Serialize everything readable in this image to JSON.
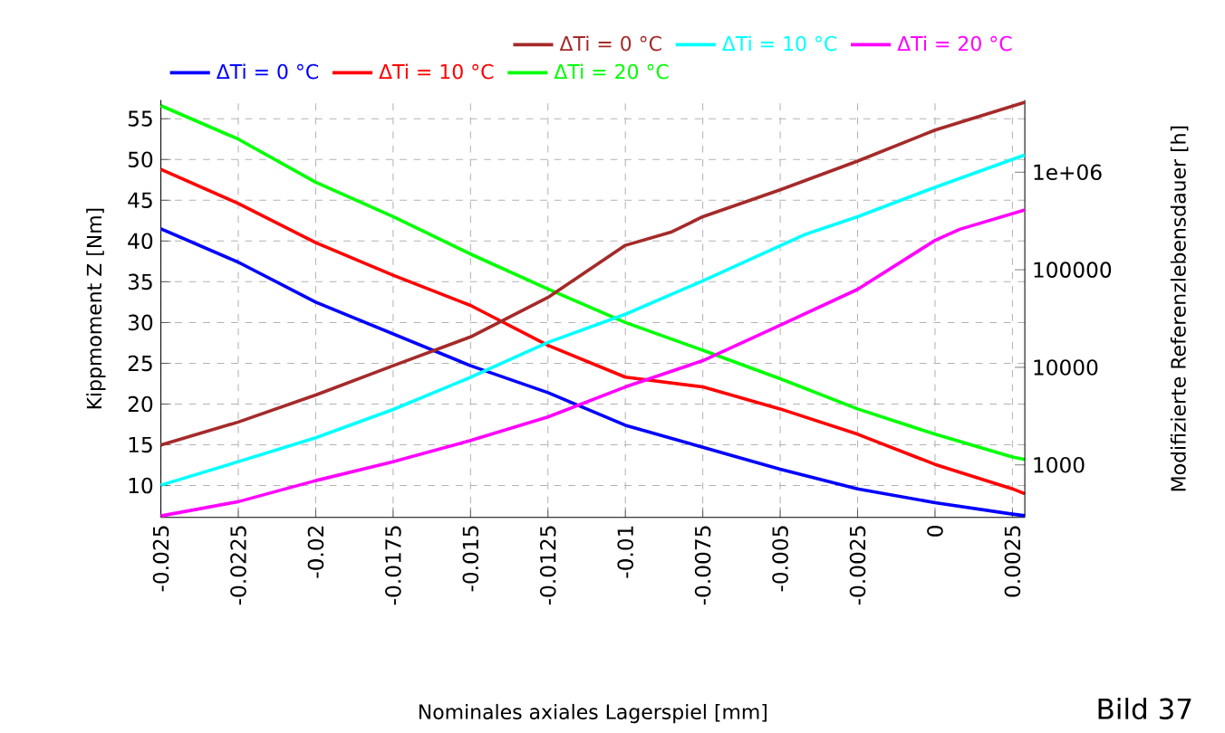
{
  "chart_data": {
    "type": "line",
    "xlabel": "Nominales axiales Lagerspiel [mm]",
    "ylabel": "Kippmoment Z [Nm]",
    "y2label": "Modifizierte Referenzlebensdauer [h]",
    "annotations": [
      "Bild 37"
    ],
    "x": [
      -0.025,
      -0.0225,
      -0.02,
      -0.0175,
      -0.015,
      -0.0125,
      -0.01,
      -0.0075,
      -0.005,
      -0.0025,
      0,
      0.0025,
      0.0029
    ],
    "xlim": [
      -0.025,
      0.0029
    ],
    "xticks": [
      -0.025,
      -0.0225,
      -0.02,
      -0.0175,
      -0.015,
      -0.0125,
      -0.01,
      -0.0075,
      -0.005,
      -0.0025,
      0,
      0.0025
    ],
    "ylim": [
      6.1,
      57.3
    ],
    "yticks": [
      10,
      15,
      20,
      25,
      30,
      35,
      40,
      45,
      50,
      55
    ],
    "y2lim": [
      290,
      5500000
    ],
    "y2ticks": [
      {
        "value": 1000,
        "label": "1000"
      },
      {
        "value": 10000,
        "label": "10000"
      },
      {
        "value": 100000,
        "label": "100000"
      },
      {
        "value": 1000000,
        "label": "1e+06"
      }
    ],
    "log": "y2",
    "grid": true,
    "legend": "top",
    "series": [
      {
        "name": "ΔTi = 0 °C",
        "color": "#0000ff",
        "values": [
          41.5,
          37.4,
          32.5,
          28.6,
          24.7,
          21.4,
          17.4,
          14.7,
          12.0,
          9.6,
          7.9,
          6.5,
          6.3
        ]
      },
      {
        "name": "ΔTi = 10 °C",
        "color": "#ff0000",
        "values": [
          48.8,
          44.6,
          39.8,
          35.8,
          32.1,
          27.2,
          23.3,
          22.1,
          19.4,
          16.3,
          12.6,
          9.6,
          9.0
        ]
      },
      {
        "name": "ΔTi = 20 °C",
        "color": "#00ff00",
        "values": [
          56.6,
          52.5,
          47.2,
          43.0,
          38.4,
          34.1,
          30.0,
          26.6,
          23.1,
          19.4,
          16.3,
          13.5,
          13.2
        ]
      },
      {
        "name": "ΔTi = 0 °C",
        "color": "#a52a2a",
        "axis": "y2",
        "x": [
          -0.025,
          -0.0225,
          -0.02,
          -0.0175,
          -0.015,
          -0.0125,
          -0.01,
          -0.0085,
          -0.0075,
          -0.005,
          -0.0025,
          0,
          0.0029
        ],
        "values": [
          1600,
          2750,
          5200,
          10400,
          20500,
          52000,
          178000,
          245000,
          350000,
          660000,
          1300000,
          2700000,
          5200000
        ]
      },
      {
        "name": "ΔTi = 10 °C",
        "color": "#00ffff",
        "axis": "y2",
        "x": [
          -0.025,
          -0.0225,
          -0.02,
          -0.0175,
          -0.015,
          -0.0125,
          -0.01,
          -0.0075,
          -0.0042,
          -0.0025,
          0,
          0.0029
        ],
        "values": [
          620,
          1080,
          1900,
          3700,
          7900,
          18000,
          35000,
          77000,
          230000,
          350000,
          700000,
          1500000
        ]
      },
      {
        "name": "ΔTi = 20 °C",
        "color": "#ff00ff",
        "axis": "y2",
        "x": [
          -0.025,
          -0.0225,
          -0.02,
          -0.0175,
          -0.015,
          -0.0125,
          -0.01,
          -0.0075,
          -0.005,
          -0.0025,
          0,
          0.0008,
          0.0029
        ],
        "values": [
          300,
          420,
          690,
          1080,
          1780,
          3100,
          6300,
          11700,
          27000,
          63000,
          200000,
          260000,
          410000
        ]
      }
    ]
  }
}
